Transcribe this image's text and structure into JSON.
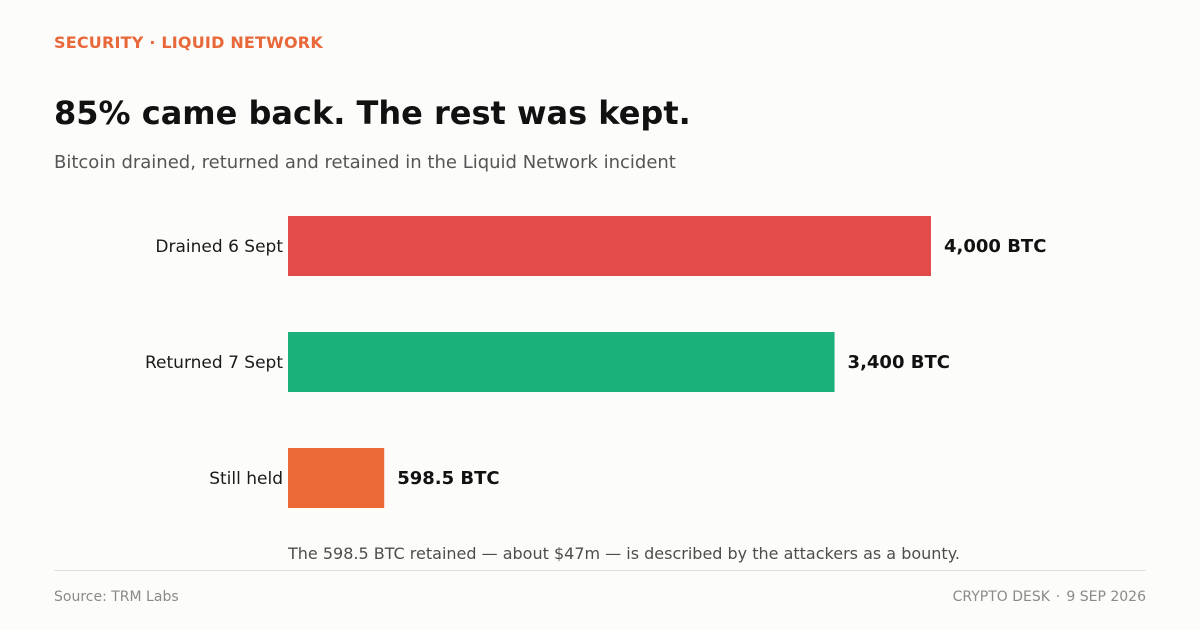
{
  "kicker": "SECURITY · LIQUID NETWORK",
  "title": "85% came back. The rest was kept.",
  "subtitle": "Bitcoin drained, returned and retained in the Liquid Network incident",
  "annotation": "The 598.5 BTC retained — about $47m — is described by the attackers as a bounty.",
  "footer": {
    "source": "Source: TRM Labs",
    "publisher": "CRYPTO DESK",
    "separator": "·",
    "date": "9 SEP 2026"
  },
  "colors": {
    "accent": "#e8683a",
    "drained": "#e34b4b",
    "returned": "#1bb17b",
    "held": "#ec6a35"
  },
  "chart_data": {
    "type": "bar",
    "orientation": "horizontal",
    "categories": [
      "Drained 6 Sept",
      "Returned 7 Sept",
      "Still held"
    ],
    "values": [
      4000,
      3400,
      598.5
    ],
    "value_labels": [
      "4,000 BTC",
      "3,400 BTC",
      "598.5 BTC"
    ],
    "bar_colors": [
      "#e34b4b",
      "#1bb17b",
      "#ec6a35"
    ],
    "xlim": [
      0,
      4000
    ],
    "grid": false,
    "legend": "none"
  }
}
